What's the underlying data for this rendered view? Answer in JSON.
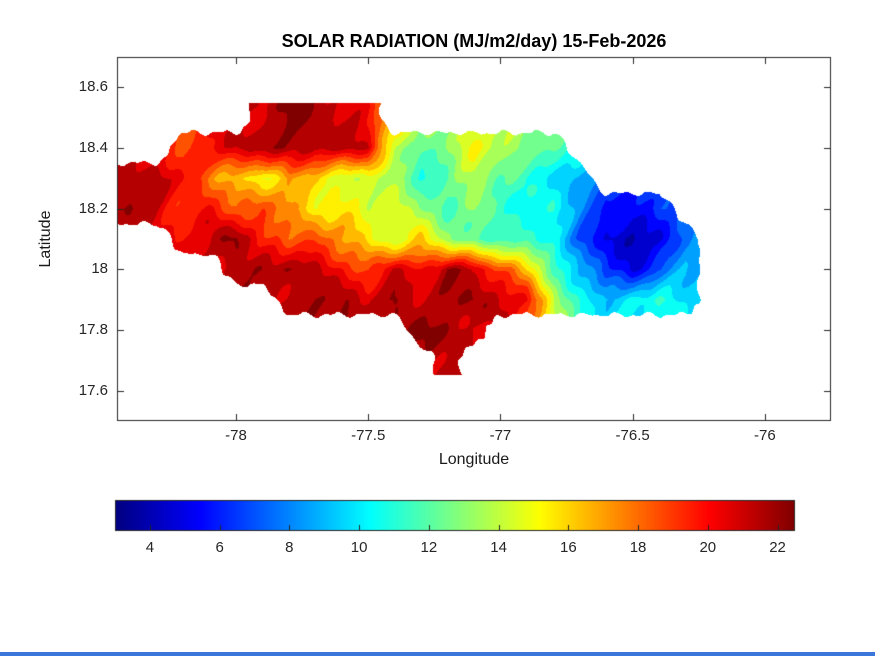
{
  "figure": {
    "background": "#ffffff",
    "bottom_edge_color": "#3b77db"
  },
  "chart_data": {
    "type": "heatmap",
    "title": "SOLAR RADIATION (MJ/m2/day) 15-Feb-2026",
    "xlabel": "Longitude",
    "ylabel": "Latitude",
    "xlim": [
      -78.45,
      -75.75
    ],
    "ylim": [
      17.5,
      18.7
    ],
    "xticks": [
      -78,
      -77.5,
      -77,
      -76.5,
      -76
    ],
    "xtick_labels": [
      "-78",
      "-77.5",
      "-77",
      "-76.5",
      "-76"
    ],
    "yticks": [
      17.6,
      17.8,
      18,
      18.2,
      18.4,
      18.6
    ],
    "ytick_labels": [
      "17.6",
      "17.8",
      "18",
      "18.2",
      "18.4",
      "18.6"
    ],
    "grid_on": false,
    "colormap": "jet",
    "clim": [
      3,
      22.5
    ],
    "contour_step": 1,
    "colorbar": {
      "orientation": "horizontal",
      "ticks": [
        4,
        6,
        8,
        10,
        12,
        14,
        16,
        18,
        20,
        22
      ],
      "tick_labels": [
        "4",
        "6",
        "8",
        "10",
        "12",
        "14",
        "16",
        "18",
        "20",
        "22"
      ]
    },
    "grid": {
      "lon_start": -78.4,
      "lon_step": 0.1,
      "lat_start": 18.5,
      "lat_step": -0.1,
      "values": [
        [
          null,
          null,
          null,
          null,
          null,
          21,
          22,
          22,
          21,
          20,
          null,
          null,
          null,
          null,
          null,
          null,
          null,
          null,
          null,
          null,
          null,
          null,
          null
        ],
        [
          null,
          null,
          18,
          20,
          21,
          22,
          22,
          21,
          22,
          21,
          14,
          12,
          13,
          15,
          14,
          13,
          12,
          null,
          null,
          null,
          null,
          null,
          null
        ],
        [
          21,
          22,
          20,
          18,
          16,
          15,
          17,
          16,
          14,
          15,
          13,
          11,
          12,
          14,
          12,
          11,
          10,
          9,
          null,
          null,
          null,
          null,
          null
        ],
        [
          22,
          21,
          19,
          20,
          18,
          19,
          17,
          15,
          16,
          14,
          15,
          13,
          12,
          13,
          11,
          10,
          11,
          8,
          6,
          5,
          7,
          null,
          null
        ],
        [
          null,
          null,
          20,
          21,
          22,
          20,
          18,
          19,
          17,
          16,
          14,
          16,
          13,
          12,
          11,
          12,
          10,
          7,
          5,
          4,
          5,
          8,
          null
        ],
        [
          null,
          null,
          null,
          null,
          21,
          22,
          22,
          21,
          20,
          19,
          21,
          20,
          22,
          21,
          19,
          16,
          12,
          9,
          6,
          5,
          7,
          9,
          null
        ],
        [
          null,
          null,
          null,
          null,
          null,
          null,
          21,
          22,
          22,
          21,
          22,
          21,
          22,
          22,
          21,
          20,
          14,
          11,
          9,
          10,
          11,
          10,
          null
        ],
        [
          null,
          null,
          null,
          null,
          null,
          null,
          null,
          null,
          null,
          null,
          null,
          22,
          22,
          21,
          null,
          null,
          null,
          null,
          null,
          null,
          null,
          null,
          null
        ],
        [
          null,
          null,
          null,
          null,
          null,
          null,
          null,
          null,
          null,
          null,
          null,
          null,
          21,
          null,
          null,
          null,
          null,
          null,
          null,
          null,
          null,
          null,
          null
        ]
      ]
    }
  }
}
